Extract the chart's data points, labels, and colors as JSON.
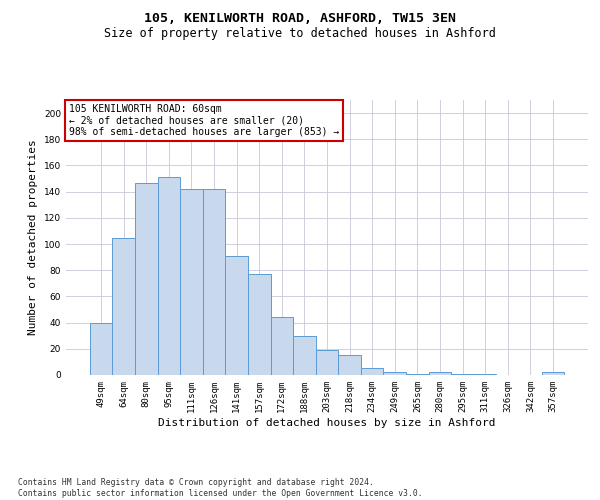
{
  "title_line1": "105, KENILWORTH ROAD, ASHFORD, TW15 3EN",
  "title_line2": "Size of property relative to detached houses in Ashford",
  "xlabel": "Distribution of detached houses by size in Ashford",
  "ylabel": "Number of detached properties",
  "categories": [
    "49sqm",
    "64sqm",
    "80sqm",
    "95sqm",
    "111sqm",
    "126sqm",
    "141sqm",
    "157sqm",
    "172sqm",
    "188sqm",
    "203sqm",
    "218sqm",
    "234sqm",
    "249sqm",
    "265sqm",
    "280sqm",
    "295sqm",
    "311sqm",
    "326sqm",
    "342sqm",
    "357sqm"
  ],
  "values": [
    40,
    105,
    147,
    151,
    142,
    142,
    91,
    77,
    44,
    30,
    19,
    15,
    5,
    2,
    1,
    2,
    1,
    1,
    0,
    0,
    2
  ],
  "bar_color": "#c8d9ed",
  "bar_edge_color": "#5b9bd5",
  "annotation_text": "105 KENILWORTH ROAD: 60sqm\n← 2% of detached houses are smaller (20)\n98% of semi-detached houses are larger (853) →",
  "annotation_box_color": "#ffffff",
  "annotation_box_edge_color": "#cc0000",
  "footnote": "Contains HM Land Registry data © Crown copyright and database right 2024.\nContains public sector information licensed under the Open Government Licence v3.0.",
  "ylim": [
    0,
    210
  ],
  "yticks": [
    0,
    20,
    40,
    60,
    80,
    100,
    120,
    140,
    160,
    180,
    200
  ],
  "background_color": "#ffffff",
  "grid_color": "#c8c8d8",
  "title_fontsize": 9.5,
  "subtitle_fontsize": 8.5,
  "axis_label_fontsize": 8,
  "tick_fontsize": 6.5,
  "annotation_fontsize": 7,
  "footnote_fontsize": 5.8
}
